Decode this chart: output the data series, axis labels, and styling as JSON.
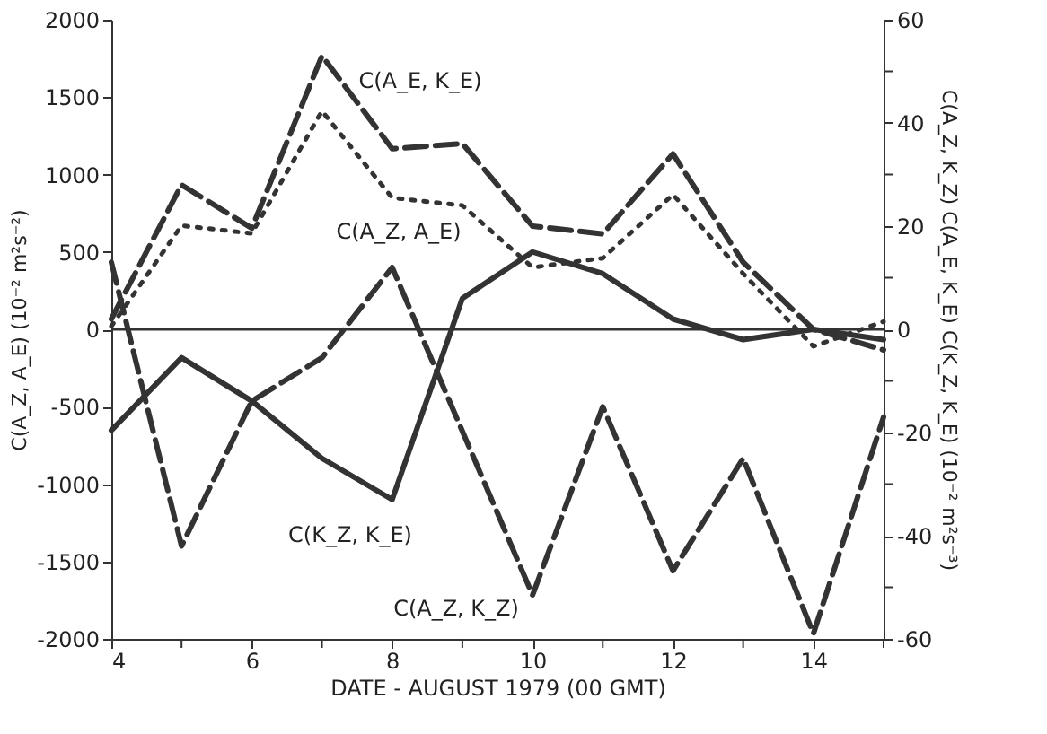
{
  "chart_data": {
    "type": "line",
    "xlabel": "DATE - AUGUST 1979 (00 GMT)",
    "ylabel": "C(A_Z, A_E) (10⁻² m²s⁻²)",
    "y2label": "C(A_Z, K_Z) C(A_E, K_E) C(K_Z, K_E) (10⁻² m²s⁻³)",
    "x": [
      4,
      5,
      6,
      7,
      8,
      9,
      10,
      11,
      12,
      13,
      14,
      15
    ],
    "series": [
      {
        "color": "#333333",
        "line_style": "dotted",
        "values": [
          20,
          670,
          620,
          1410,
          850,
          800,
          400,
          460,
          870,
          360,
          -110,
          50
        ]
      },
      {
        "color": "#333333",
        "line_style": "dashed",
        "axis": "y2",
        "values": [
          2,
          28,
          19.6,
          53,
          35,
          36,
          20,
          18.5,
          34,
          13,
          0,
          -4
        ]
      },
      {
        "color": "#333333",
        "line_style": "solid",
        "axis": "y2",
        "values": [
          -19.6,
          -5.5,
          -13.9,
          -25,
          -33,
          6,
          15,
          10.8,
          2,
          -2,
          0,
          -2
        ]
      },
      {
        "color": "#333333",
        "line_style": "dashed",
        "axis": "y2",
        "x": [
          4,
          5,
          6,
          7,
          8,
          10,
          11,
          12,
          13,
          14,
          15
        ],
        "values": [
          13,
          -42,
          -13.9,
          -5.5,
          12,
          -51.5,
          -15,
          -46.8,
          -25,
          -59,
          -17
        ]
      }
    ],
    "xlim": [
      4,
      15
    ],
    "xticks": [
      4,
      {
        "value": 5,
        "label": null
      },
      6,
      {
        "value": 7,
        "label": null
      },
      8,
      {
        "value": 9,
        "label": null
      },
      10,
      {
        "value": 11,
        "label": null
      },
      12,
      {
        "value": 13,
        "label": null
      },
      14,
      {
        "value": 15,
        "label": null
      }
    ],
    "ylim": [
      -2000,
      2000
    ],
    "yticks": [
      -2000,
      -1500,
      -1000,
      -500,
      0,
      500,
      1000,
      1500,
      2000
    ],
    "y2lim": [
      -60,
      60
    ],
    "y2ticks": [
      -60,
      {
        "value": -50,
        "label": null
      },
      -40,
      {
        "value": -30,
        "label": null
      },
      -20,
      {
        "value": -10,
        "label": null
      },
      0,
      {
        "value": 10,
        "label": null
      },
      20,
      {
        "value": 30,
        "label": null
      },
      40,
      {
        "value": 50,
        "label": null
      },
      60
    ],
    "ref_lines": [
      {
        "axis": "y",
        "value": 0,
        "color": "#333333",
        "line_style": "solid"
      }
    ],
    "annotations": [
      "C(A_E, K_E)",
      "C(A_Z, A_E)",
      "C(K_Z, K_E)",
      "C(A_Z, K_Z)"
    ],
    "grid": false,
    "marker": "none"
  }
}
